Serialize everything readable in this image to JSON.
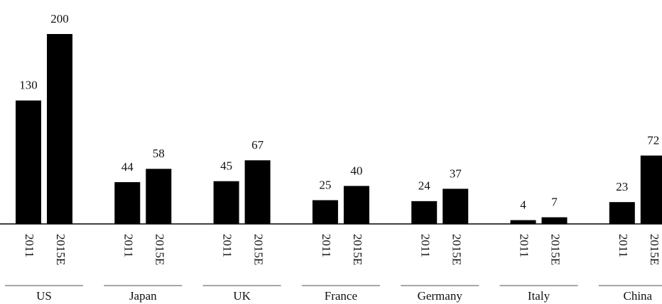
{
  "chart_data": {
    "type": "bar",
    "categories": [
      "US",
      "Japan",
      "UK",
      "France",
      "Germany",
      "Italy",
      "China"
    ],
    "series": [
      {
        "name": "2011",
        "color": "#000000",
        "values": [
          130,
          44,
          45,
          25,
          24,
          4,
          23
        ]
      },
      {
        "name": "2015E",
        "color": "#000000",
        "values": [
          200,
          58,
          67,
          40,
          37,
          7,
          72
        ]
      }
    ],
    "ylim": [
      0,
      200
    ]
  }
}
